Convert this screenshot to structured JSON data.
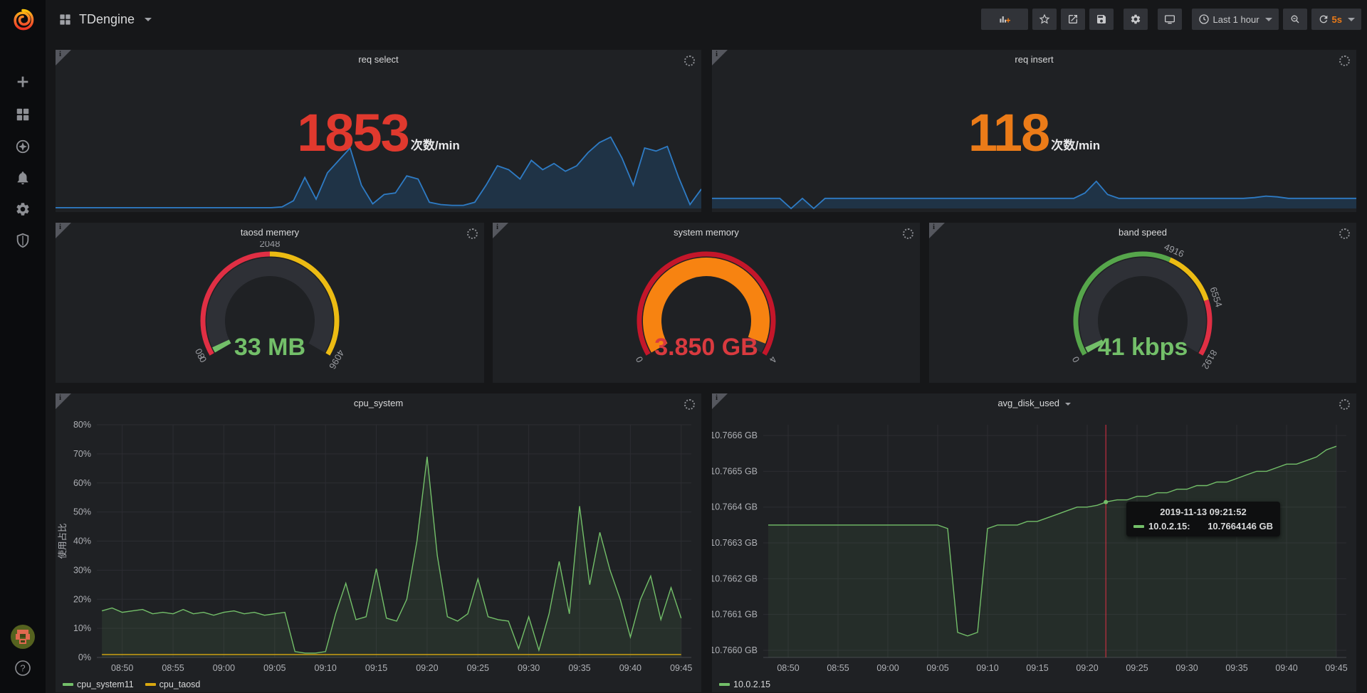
{
  "navbar": {
    "title": "TDengine",
    "time_range": "Last 1 hour",
    "refresh_interval": "5s"
  },
  "sidebar": {
    "icons": [
      "plus-icon",
      "dashboards-grid-icon",
      "explore-compass-icon",
      "alerting-bell-icon",
      "configuration-gear-icon",
      "server-admin-shield-icon",
      "user-avatar",
      "help-icon"
    ]
  },
  "toolbar_icons": [
    "add-panel-icon",
    "star-icon",
    "share-icon",
    "save-icon",
    "settings-gear-icon",
    "tv-mode-icon",
    "clock-icon",
    "zoom-out-icon",
    "refresh-icon"
  ],
  "chart_data": {
    "req_select": {
      "type": "area",
      "title": "req select",
      "value": "1853",
      "value_color": "#e0392e",
      "unit": "次数/min",
      "line_color": "#2e7bc4",
      "fill_color": "rgba(31,120,193,0.22)",
      "ylim": [
        0,
        100
      ],
      "values": [
        1,
        1,
        1,
        1,
        1,
        1,
        1,
        1,
        1,
        1,
        1,
        1,
        1,
        1,
        1,
        1,
        1,
        1,
        1,
        1,
        2,
        10,
        40,
        12,
        46,
        62,
        78,
        30,
        6,
        18,
        20,
        42,
        38,
        8,
        5,
        4,
        4,
        8,
        30,
        55,
        50,
        38,
        62,
        50,
        58,
        48,
        55,
        72,
        85,
        92,
        65,
        30,
        78,
        74,
        80,
        40,
        5,
        25
      ]
    },
    "req_insert": {
      "type": "area",
      "title": "req insert",
      "value": "118",
      "value_color": "#eb7b18",
      "unit": "次数/min",
      "line_color": "#2e7bc4",
      "fill_color": "rgba(31,120,193,0.22)",
      "ylim": [
        0,
        100
      ],
      "values": [
        13,
        13,
        13,
        13,
        13,
        13,
        13,
        0,
        13,
        0,
        13,
        13,
        13,
        13,
        13,
        13,
        13,
        13,
        13,
        13,
        13,
        13,
        13,
        13,
        13,
        13,
        13,
        13,
        13,
        13,
        13,
        13,
        13,
        20,
        35,
        18,
        13,
        13,
        13,
        13,
        13,
        13,
        13,
        13,
        13,
        13,
        13,
        13,
        14,
        16,
        15,
        13,
        13,
        13,
        13,
        13,
        13,
        13
      ]
    },
    "gauges": [
      {
        "type": "gauge",
        "title": "taosd memery",
        "value": "33 MB",
        "value_color": "#73bf69",
        "bar_color": "#73bf69",
        "value_fraction": 0.008,
        "min": 0,
        "max": 4096,
        "segments": [
          {
            "from": 0,
            "to": 0.5,
            "color": "#e02f44"
          },
          {
            "from": 0.5,
            "to": 1,
            "color": "#ecbb13"
          }
        ],
        "labels": [
          {
            "text": "0",
            "f": 0
          },
          {
            "text": "80",
            "f": 0.02
          },
          {
            "text": "2048",
            "f": 0.5
          },
          {
            "text": "4096",
            "f": 1
          }
        ]
      },
      {
        "type": "gauge",
        "title": "system memory",
        "value": "3.850 GB",
        "value_color": "#d93a3f",
        "bar_color": "#f78311",
        "value_fraction": 0.9625,
        "min": 0,
        "max": 4,
        "segments": [
          {
            "from": 0,
            "to": 1,
            "color": "#c4162a"
          }
        ],
        "labels": [
          {
            "text": "0",
            "f": 0
          },
          {
            "text": "4",
            "f": 1
          }
        ]
      },
      {
        "type": "gauge",
        "title": "band speed",
        "value": "41 kbps",
        "value_color": "#73bf69",
        "bar_color": "#73bf69",
        "value_fraction": 0.01,
        "min": 0,
        "max": 8192,
        "segments": [
          {
            "from": 0,
            "to": 0.6,
            "color": "#56a64b"
          },
          {
            "from": 0.6,
            "to": 0.8,
            "color": "#ecbb13"
          },
          {
            "from": 0.8,
            "to": 1,
            "color": "#e02f44"
          }
        ],
        "labels": [
          {
            "text": "0",
            "f": 0
          },
          {
            "text": "4916",
            "f": 0.6
          },
          {
            "text": "6554",
            "f": 0.8
          },
          {
            "text": "8192",
            "f": 1
          }
        ]
      }
    ],
    "cpu_system": {
      "type": "line",
      "title": "cpu_system",
      "ylabel": "使用占比",
      "ylim": [
        0,
        80
      ],
      "y_tick_labels": [
        "80%",
        "70%",
        "60%",
        "50%",
        "40%",
        "30%",
        "20%",
        "10%",
        "0%"
      ],
      "y_tick_values": [
        80,
        70,
        60,
        50,
        40,
        30,
        20,
        10,
        0
      ],
      "x_tick_labels": [
        "08:50",
        "08:55",
        "09:00",
        "09:05",
        "09:10",
        "09:15",
        "09:20",
        "09:25",
        "09:30",
        "09:35",
        "09:40",
        "09:45"
      ],
      "x_tick_indices": [
        2,
        7,
        12,
        17,
        22,
        27,
        32,
        37,
        42,
        47,
        52,
        57
      ],
      "series": [
        {
          "name": "cpu_system11",
          "color": "#73bf69",
          "fill": "rgba(115,191,105,0.10)",
          "values": [
            16,
            17,
            15.5,
            16,
            16.5,
            15,
            15.5,
            15,
            16.5,
            15,
            15.5,
            14.5,
            15.5,
            16,
            15,
            15.5,
            14.5,
            15,
            15.5,
            2,
            1.5,
            1.5,
            2,
            15,
            25.5,
            13,
            14,
            30.5,
            13.5,
            12.5,
            20,
            40,
            69,
            35,
            14,
            12.5,
            15,
            27,
            14,
            13,
            12.5,
            3,
            14,
            2.5,
            15,
            33,
            15,
            52,
            25,
            43,
            30,
            20,
            7,
            20,
            28,
            13,
            24,
            13.5
          ]
        },
        {
          "name": "cpu_taosd",
          "color": "#d9a810",
          "values": [
            1,
            1,
            1,
            1,
            1,
            1,
            1,
            1,
            1,
            1,
            1,
            1,
            1,
            1,
            1,
            1,
            1,
            1,
            1,
            1,
            1,
            1,
            1,
            1,
            1,
            1,
            1,
            1,
            1,
            1,
            1,
            1,
            1,
            1,
            1,
            1,
            1,
            1,
            1,
            1,
            1,
            1,
            1,
            1,
            1,
            1,
            1,
            1,
            1,
            1,
            1,
            1,
            1,
            1,
            1,
            1,
            1,
            1
          ]
        }
      ]
    },
    "avg_disk_used": {
      "type": "line",
      "title": "avg_disk_used",
      "ylim": [
        10.76598,
        10.76663
      ],
      "y_tick_labels": [
        "10.7666 GB",
        "10.7665 GB",
        "10.7664 GB",
        "10.7663 GB",
        "10.7662 GB",
        "10.7661 GB",
        "10.7660 GB"
      ],
      "y_tick_values": [
        10.7666,
        10.7665,
        10.7664,
        10.7663,
        10.7662,
        10.7661,
        10.766
      ],
      "x_tick_labels": [
        "08:50",
        "08:55",
        "09:00",
        "09:05",
        "09:10",
        "09:15",
        "09:20",
        "09:25",
        "09:30",
        "09:35",
        "09:40",
        "09:45"
      ],
      "x_tick_indices": [
        2,
        7,
        12,
        17,
        22,
        27,
        32,
        37,
        42,
        47,
        52,
        57
      ],
      "series": [
        {
          "name": "10.0.2.15",
          "color": "#73bf69",
          "fill": "rgba(115,191,105,0.08)",
          "values": [
            10.76635,
            10.76635,
            10.76635,
            10.76635,
            10.76635,
            10.76635,
            10.76635,
            10.76635,
            10.76635,
            10.76635,
            10.76635,
            10.76635,
            10.76635,
            10.76635,
            10.76635,
            10.76635,
            10.76635,
            10.76635,
            10.76634,
            10.76605,
            10.76604,
            10.76605,
            10.76634,
            10.76635,
            10.76635,
            10.76635,
            10.76636,
            10.76636,
            10.76637,
            10.76638,
            10.76639,
            10.7664,
            10.7664,
            10.766405,
            10.766415,
            10.76642,
            10.76642,
            10.76643,
            10.76643,
            10.76644,
            10.76644,
            10.76645,
            10.76645,
            10.76646,
            10.76646,
            10.76647,
            10.76647,
            10.76648,
            10.76649,
            10.7665,
            10.7665,
            10.76651,
            10.76652,
            10.76652,
            10.76653,
            10.76654,
            10.76656,
            10.76657
          ]
        }
      ],
      "crosshair": {
        "index": 33.87,
        "color": "#e02f44",
        "dot_value": 10.766414
      },
      "tooltip": {
        "time": "2019-11-13 09:21:52",
        "series": "10.0.2.15:",
        "value": "10.7664146 GB",
        "color": "#73bf69"
      }
    }
  }
}
